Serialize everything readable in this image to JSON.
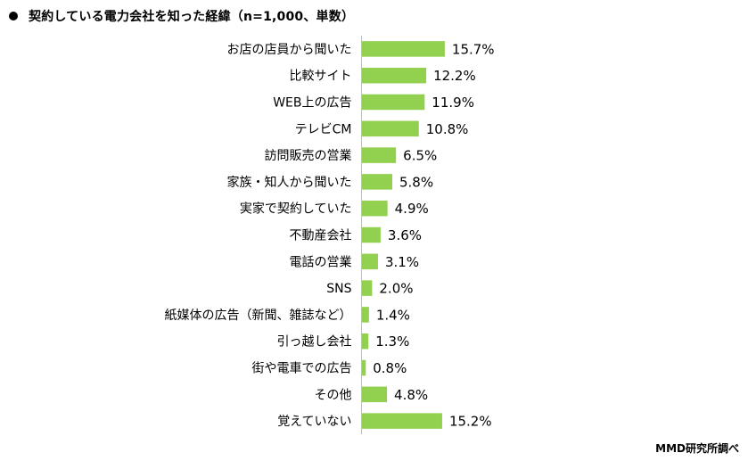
{
  "title": "契約している電力会社を知った経緯（n=1,000、単数）",
  "credit": "MMD研究所調べ",
  "colors": {
    "bar": "#92D050",
    "axis": "#BFBFBF",
    "text": "#000000"
  },
  "chart_data": {
    "type": "bar",
    "orientation": "horizontal",
    "title": "契約している電力会社を知った経緯（n=1,000、単数）",
    "categories": [
      "お店の店員から聞いた",
      "比較サイト",
      "WEB上の広告",
      "テレビCM",
      "訪問販売の営業",
      "家族・知人から聞いた",
      "実家で契約していた",
      "不動産会社",
      "電話の営業",
      "SNS",
      "紙媒体の広告（新聞、雑誌など）",
      "引っ越し会社",
      "街や電車での広告",
      "その他",
      "覚えていない"
    ],
    "values": [
      15.7,
      12.2,
      11.9,
      10.8,
      6.5,
      5.8,
      4.9,
      3.6,
      3.1,
      2.0,
      1.4,
      1.3,
      0.8,
      4.8,
      15.2
    ],
    "value_labels": [
      "15.7%",
      "12.2%",
      "11.9%",
      "10.8%",
      "6.5%",
      "5.8%",
      "4.9%",
      "3.6%",
      "3.1%",
      "2.0%",
      "1.4%",
      "1.3%",
      "0.8%",
      "4.8%",
      "15.2%"
    ],
    "unit": "%",
    "xlim": [
      0,
      100
    ],
    "grid": false,
    "legend": "none"
  }
}
